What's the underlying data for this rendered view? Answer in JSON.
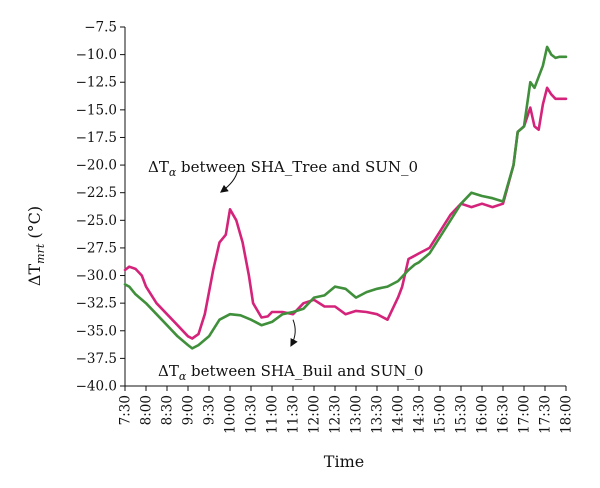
{
  "chart_data": {
    "type": "line",
    "xlabel": "Time",
    "ylabel_main": "ΔT",
    "ylabel_sub": "mrt",
    "ylabel_unit": " (°C)",
    "ylim": [
      -40.0,
      -7.5
    ],
    "yticks": [
      -40.0,
      -37.5,
      -35.0,
      -32.5,
      -30.0,
      -27.5,
      -25.0,
      -22.5,
      -20.0,
      -17.5,
      -15.0,
      -12.5,
      -10.0,
      -7.5
    ],
    "ytick_labels": [
      "−40.0",
      "−37.5",
      "−35.0",
      "−32.5",
      "−30.0",
      "−27.5",
      "−25.0",
      "−22.5",
      "−20.0",
      "−17.5",
      "−15.0",
      "−12.5",
      "−10.0",
      "−7.5"
    ],
    "categories": [
      "7:30",
      "8:00",
      "8:30",
      "9:00",
      "9:30",
      "10:00",
      "10:30",
      "11:00",
      "11:30",
      "12:00",
      "12:30",
      "13:00",
      "13:30",
      "14:00",
      "14:30",
      "15:00",
      "15:30",
      "16:00",
      "16:30",
      "17:00",
      "17:30",
      "18:00"
    ],
    "grid": false,
    "legend": "none",
    "series": [
      {
        "color": "#d4237a",
        "x": [
          7.5,
          7.6,
          7.75,
          7.9,
          8.0,
          8.25,
          8.5,
          8.75,
          9.0,
          9.1,
          9.25,
          9.4,
          9.5,
          9.6,
          9.75,
          9.9,
          10.0,
          10.15,
          10.3,
          10.45,
          10.55,
          10.75,
          10.9,
          11.0,
          11.25,
          11.5,
          11.75,
          12.0,
          12.25,
          12.5,
          12.75,
          13.0,
          13.25,
          13.5,
          13.75,
          14.0,
          14.1,
          14.25,
          14.35,
          14.5,
          14.75,
          15.0,
          15.25,
          15.5,
          15.75,
          16.0,
          16.25,
          16.5,
          16.75,
          16.85,
          17.0,
          17.15,
          17.25,
          17.35,
          17.45,
          17.55,
          17.65,
          17.75,
          17.85,
          18.0
        ],
        "y": [
          -29.5,
          -29.2,
          -29.4,
          -30.0,
          -31.0,
          -32.5,
          -33.5,
          -34.5,
          -35.5,
          -35.7,
          -35.3,
          -33.5,
          -31.5,
          -29.5,
          -27.0,
          -26.3,
          -24.0,
          -25.0,
          -27.0,
          -30.0,
          -32.5,
          -33.8,
          -33.7,
          -33.3,
          -33.3,
          -33.5,
          -32.5,
          -32.2,
          -32.8,
          -32.8,
          -33.5,
          -33.2,
          -33.3,
          -33.5,
          -34.0,
          -32.0,
          -31.0,
          -28.5,
          -28.3,
          -28.0,
          -27.5,
          -26.0,
          -24.5,
          -23.5,
          -23.8,
          -23.5,
          -23.8,
          -23.5,
          -20.0,
          -17.0,
          -16.5,
          -14.8,
          -16.5,
          -16.8,
          -14.5,
          -13.0,
          -13.6,
          -14.0,
          -14.0,
          -14.0
        ]
      },
      {
        "color": "#3f8f3b",
        "x": [
          7.5,
          7.6,
          7.75,
          8.0,
          8.25,
          8.5,
          8.75,
          9.0,
          9.1,
          9.25,
          9.5,
          9.75,
          10.0,
          10.25,
          10.5,
          10.75,
          11.0,
          11.25,
          11.5,
          11.75,
          12.0,
          12.25,
          12.5,
          12.75,
          13.0,
          13.25,
          13.5,
          13.75,
          14.0,
          14.25,
          14.4,
          14.5,
          14.75,
          15.0,
          15.25,
          15.5,
          15.75,
          16.0,
          16.25,
          16.5,
          16.75,
          16.85,
          17.0,
          17.15,
          17.25,
          17.35,
          17.45,
          17.55,
          17.65,
          17.75,
          17.85,
          18.0
        ],
        "y": [
          -30.8,
          -31.0,
          -31.7,
          -32.5,
          -33.5,
          -34.5,
          -35.5,
          -36.3,
          -36.6,
          -36.3,
          -35.5,
          -34.0,
          -33.5,
          -33.6,
          -34.0,
          -34.5,
          -34.2,
          -33.5,
          -33.3,
          -33.0,
          -32.0,
          -31.8,
          -31.0,
          -31.2,
          -32.0,
          -31.5,
          -31.2,
          -31.0,
          -30.5,
          -29.5,
          -29.0,
          -28.8,
          -28.0,
          -26.5,
          -25.0,
          -23.5,
          -22.5,
          -22.8,
          -23.0,
          -23.3,
          -20.0,
          -17.0,
          -16.5,
          -12.5,
          -13.0,
          -12.0,
          -11.0,
          -9.3,
          -10.0,
          -10.3,
          -10.2,
          -10.2
        ]
      }
    ],
    "annotations": [
      {
        "main": "ΔT",
        "sub": "α",
        "rest": " between SHA_Tree and SUN_0",
        "arrow_tail": [
          10.18,
          -20.5
        ],
        "arrow_head": [
          9.8,
          -22.4
        ]
      },
      {
        "main": "ΔT",
        "sub": "α",
        "rest": " between SHA_Buil and SUN_0",
        "arrow_tail": [
          11.5,
          -34.0
        ],
        "arrow_head": [
          11.46,
          -36.3
        ]
      }
    ]
  }
}
